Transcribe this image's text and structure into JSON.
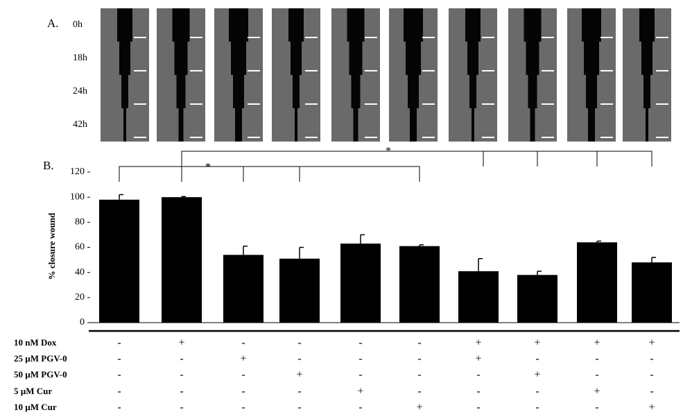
{
  "chart_data": {
    "type": "bar",
    "panel_a_label": "A.",
    "panel_b_label": "B.",
    "time_labels": [
      "0h",
      "18h",
      "24h",
      "42h"
    ],
    "y_label": "% closure wound",
    "categories": [
      null,
      null,
      null,
      null,
      null,
      null,
      null,
      null,
      null,
      null
    ],
    "values": [
      98,
      100,
      54,
      51,
      63,
      61,
      41,
      38,
      64,
      48
    ],
    "errors": [
      4,
      0.5,
      7,
      9,
      7,
      1,
      10,
      3,
      1,
      4
    ],
    "color": "#000000",
    "ylim": [
      0,
      120
    ],
    "yticks": [
      0,
      20,
      40,
      60,
      80,
      100,
      120
    ],
    "significance": [
      "*",
      "*"
    ],
    "treatments": [
      {
        "label": "10 nM Dox",
        "values": [
          "-",
          "+",
          "-",
          "-",
          "-",
          "-",
          "+",
          "+",
          "+",
          "+"
        ]
      },
      {
        "label": "25 µM PGV-0",
        "values": [
          "-",
          "-",
          "+",
          "-",
          "-",
          "-",
          "+",
          "-",
          "-",
          "-"
        ]
      },
      {
        "label": "50 µM PGV-0",
        "values": [
          "-",
          "-",
          "-",
          "+",
          "-",
          "-",
          "-",
          "+",
          "-",
          "-"
        ]
      },
      {
        "label": "5 µM Cur",
        "values": [
          "-",
          "-",
          "-",
          "-",
          "+",
          "-",
          "-",
          "-",
          "+",
          "-"
        ]
      },
      {
        "label": "10 µM Cur",
        "values": [
          "-",
          "-",
          "-",
          "-",
          "-",
          "+",
          "-",
          "-",
          "-",
          "+"
        ]
      }
    ]
  }
}
